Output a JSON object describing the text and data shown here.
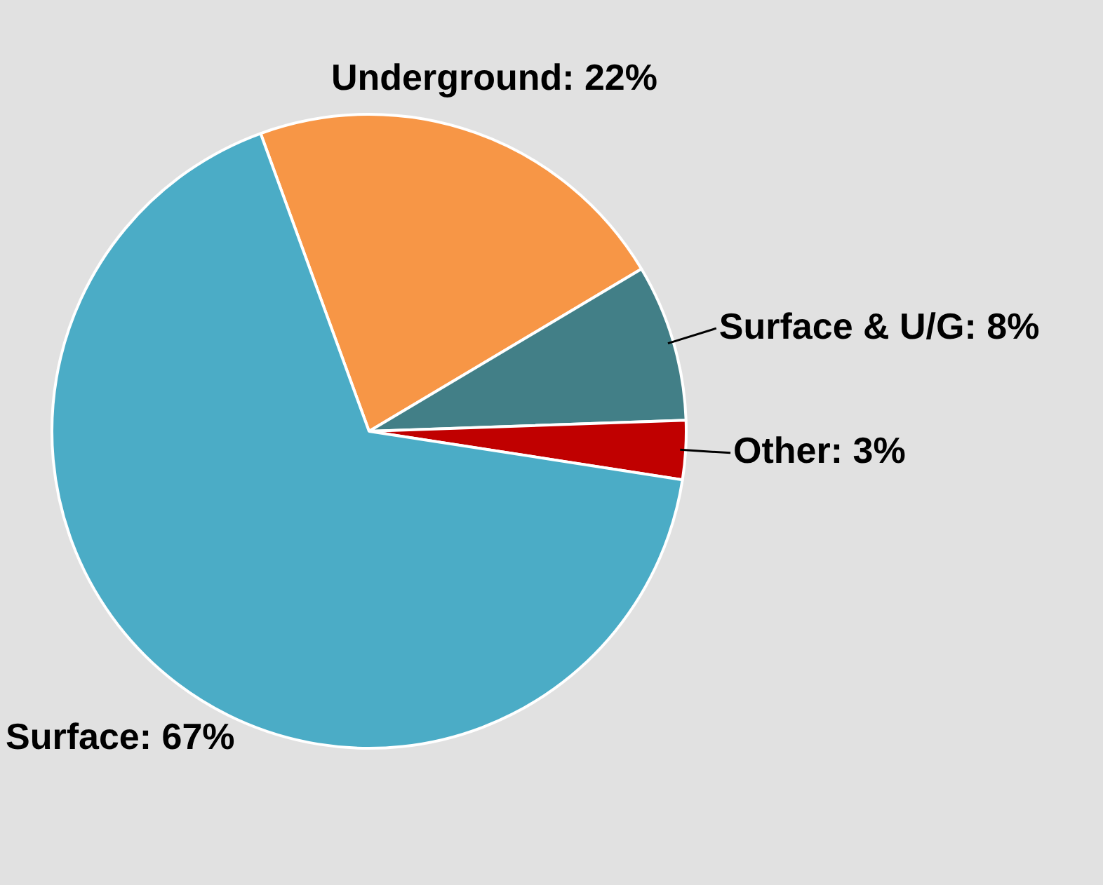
{
  "chart_data": {
    "type": "pie",
    "categories": [
      "Underground",
      "Surface & U/G",
      "Other",
      "Surface"
    ],
    "values": [
      22,
      8,
      3,
      67
    ],
    "value_labels": [
      "22%",
      "8%",
      "3%",
      "67%"
    ],
    "colors": [
      "#f79646",
      "#427f87",
      "#c00000",
      "#4bacc6"
    ],
    "legend": false
  }
}
